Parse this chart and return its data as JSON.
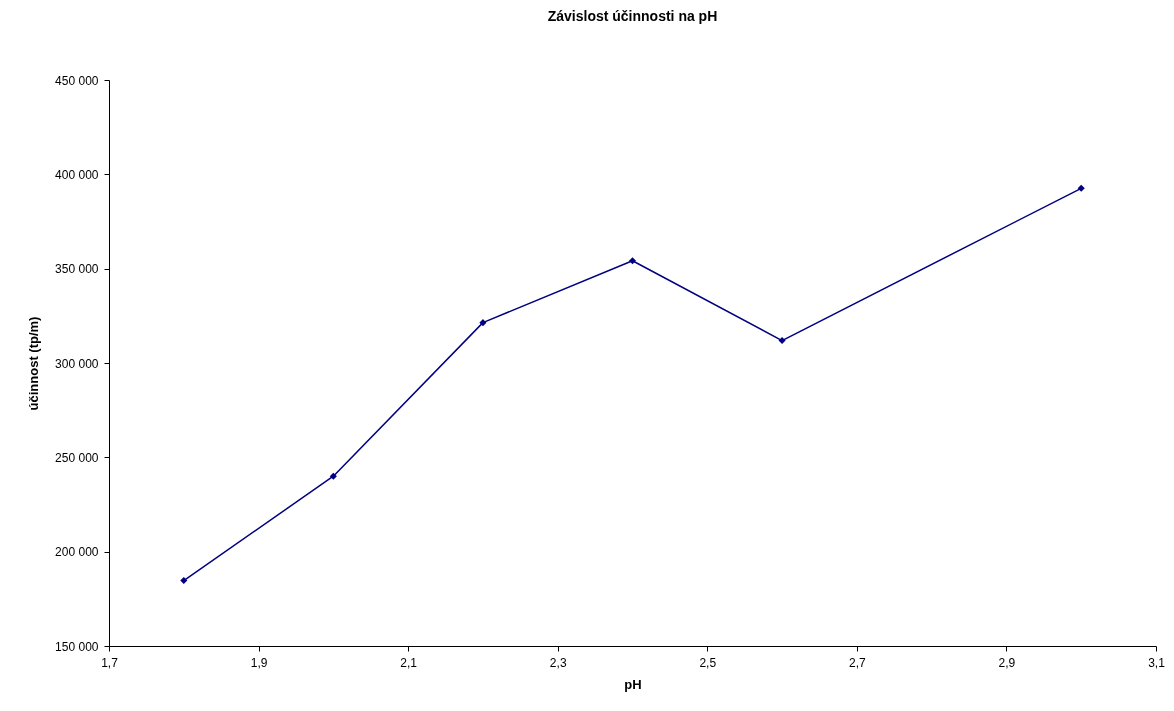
{
  "chart_data": {
    "type": "line",
    "title": "Závislost účinnosti na pH",
    "xlabel": "pH",
    "ylabel": "účinnost (tp/m)",
    "x": [
      1.8,
      2.0,
      2.2,
      2.4,
      2.6,
      3.0
    ],
    "series": [
      {
        "color": "#000080",
        "values": [
          184700,
          240000,
          321400,
          354200,
          311900,
          392600
        ]
      }
    ],
    "xlim": [
      1.7,
      3.1
    ],
    "xticks": [
      {
        "value": 1.7,
        "label": "1,7"
      },
      {
        "value": 1.9,
        "label": "1,9"
      },
      {
        "value": 2.1,
        "label": "2,1"
      },
      {
        "value": 2.3,
        "label": "2,3"
      },
      {
        "value": 2.5,
        "label": "2,5"
      },
      {
        "value": 2.7,
        "label": "2,7"
      },
      {
        "value": 2.9,
        "label": "2,9"
      },
      {
        "value": 3.1,
        "label": "3,1"
      }
    ],
    "ylim": [
      150000,
      450000
    ],
    "yticks": [
      {
        "value": 150000,
        "label": "150 000"
      },
      {
        "value": 200000,
        "label": "200 000"
      },
      {
        "value": 250000,
        "label": "250 000"
      },
      {
        "value": 300000,
        "label": "300 000"
      },
      {
        "value": 350000,
        "label": "350 000"
      },
      {
        "value": 400000,
        "label": "400 000"
      },
      {
        "value": 450000,
        "label": "450 000"
      }
    ],
    "grid": false,
    "legend": false,
    "marker": "diamond",
    "line_style": "solid"
  }
}
